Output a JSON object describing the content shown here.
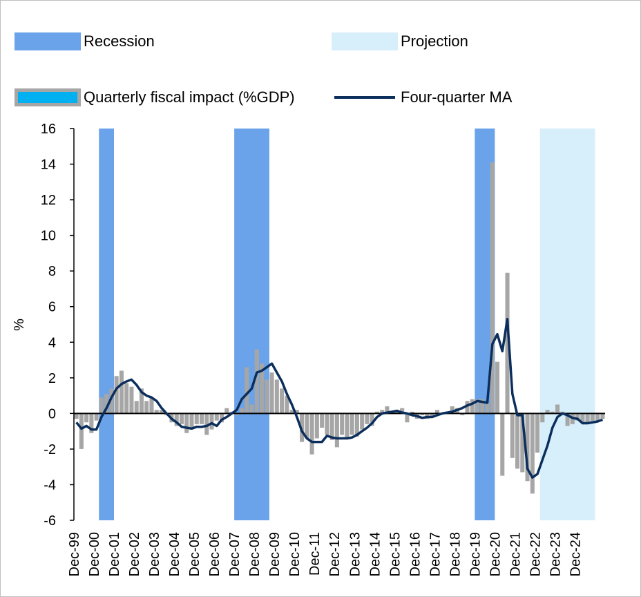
{
  "legend": {
    "recession": "Recession",
    "projection": "Projection",
    "quarterly": "Quarterly fiscal impact (%GDP)",
    "ma": "Four-quarter MA"
  },
  "colors": {
    "recession": "#6aa3ea",
    "projection": "#d7effa",
    "bar": "#a6a6a6",
    "bar_legend_fill": "#00b0f0",
    "line": "#0b2e5c",
    "axis": "#000000"
  },
  "chart_data": {
    "type": "bar",
    "title": "",
    "xlabel": "",
    "ylabel": "%",
    "ylim": [
      -6,
      16
    ],
    "yticks": [
      16,
      14,
      12,
      10,
      8,
      6,
      4,
      2,
      0,
      -2,
      -4,
      -6
    ],
    "xticks": [
      "Dec-99",
      "Dec-00",
      "Dec-01",
      "Dec-02",
      "Dec-03",
      "Dec-04",
      "Dec-05",
      "Dec-06",
      "Dec-07",
      "Dec-08",
      "Dec-09",
      "Dec-10",
      "Dec-11",
      "Dec-12",
      "Dec-13",
      "Dec-14",
      "Dec-15",
      "Dec-16",
      "Dec-17",
      "Dec-18",
      "Dec-19",
      "Dec-20",
      "Dec-21",
      "Dec-22",
      "Dec-23",
      "Dec-24"
    ],
    "x_start": 1999.75,
    "recessions": [
      [
        2001.0,
        2001.75
      ],
      [
        2007.75,
        2009.5
      ],
      [
        2019.75,
        2020.75
      ]
    ],
    "projection": [
      2023.0,
      2025.75
    ],
    "series": [
      {
        "name": "Quarterly fiscal impact (%GDP)",
        "kind": "bar",
        "values": [
          -0.3,
          -2.0,
          -0.5,
          -1.1,
          -0.4,
          0.9,
          1.1,
          1.4,
          2.1,
          2.4,
          1.7,
          1.5,
          0.7,
          1.4,
          0.7,
          0.9,
          0.2,
          0.2,
          -0.1,
          -0.5,
          -0.7,
          -0.6,
          -1.1,
          -0.8,
          -0.6,
          -0.6,
          -1.2,
          -0.9,
          -0.4,
          -0.5,
          0.3,
          0.1,
          -0.1,
          0.3,
          2.6,
          0.5,
          3.6,
          2.8,
          1.9,
          2.3,
          1.9,
          1.4,
          1.0,
          0.2,
          0.2,
          -1.6,
          -1.4,
          -2.3,
          -1.4,
          -0.8,
          -1.2,
          -1.5,
          -1.9,
          -1.2,
          -1.4,
          -1.2,
          -1.3,
          -0.9,
          -0.6,
          -0.7,
          0.1,
          0.2,
          0.4,
          0.1,
          0.1,
          0.3,
          -0.5,
          0.1,
          -0.3,
          -0.1,
          -0.3,
          -0.2,
          0.2,
          0.0,
          0.1,
          0.4,
          0.3,
          -0.1,
          0.7,
          0.8,
          0.8,
          0.8,
          0.6,
          14.1,
          2.9,
          -3.5,
          7.9,
          -2.5,
          -3.1,
          -3.3,
          -3.8,
          -4.5,
          -2.2,
          -0.5,
          0.2,
          0.1,
          0.5,
          0.1,
          -0.7,
          -0.6,
          -0.4,
          -0.5,
          -0.5,
          -0.5,
          -0.4,
          -0.3
        ],
        "color": "#a6a6a6"
      },
      {
        "name": "Four-quarter MA",
        "kind": "line",
        "values": [
          -0.5,
          -0.85,
          -0.7,
          -0.9,
          -0.9,
          -0.2,
          0.3,
          0.9,
          1.4,
          1.65,
          1.8,
          1.9,
          1.6,
          1.2,
          1.0,
          0.9,
          0.7,
          0.3,
          0.0,
          -0.3,
          -0.5,
          -0.75,
          -0.8,
          -0.85,
          -0.75,
          -0.75,
          -0.7,
          -0.55,
          -0.7,
          -0.35,
          -0.2,
          0.0,
          0.2,
          0.8,
          1.1,
          1.4,
          2.3,
          2.4,
          2.6,
          2.8,
          2.3,
          1.8,
          1.1,
          0.5,
          -0.2,
          -1.0,
          -1.4,
          -1.6,
          -1.6,
          -1.6,
          -1.25,
          -1.35,
          -1.4,
          -1.4,
          -1.4,
          -1.35,
          -1.2,
          -1.0,
          -0.8,
          -0.55,
          -0.2,
          0.0,
          0.05,
          0.1,
          0.15,
          0.05,
          0.0,
          -0.1,
          -0.15,
          -0.25,
          -0.2,
          -0.2,
          -0.1,
          0.0,
          0.05,
          0.1,
          0.2,
          0.3,
          0.45,
          0.55,
          0.7,
          0.65,
          0.6,
          3.9,
          4.45,
          3.5,
          5.3,
          1.1,
          -0.1,
          -0.1,
          -3.1,
          -3.6,
          -3.4,
          -2.6,
          -1.8,
          -0.8,
          -0.2,
          0.0,
          -0.1,
          -0.25,
          -0.3,
          -0.55,
          -0.55,
          -0.5,
          -0.45,
          -0.35
        ],
        "color": "#0b2e5c"
      }
    ]
  }
}
